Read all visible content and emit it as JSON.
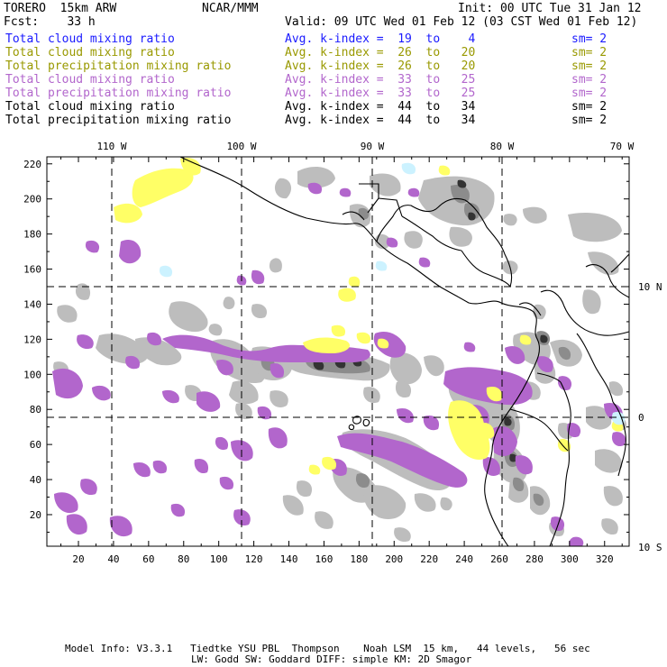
{
  "header": {
    "model": "TORERO  15km ARW",
    "org": "NCAR/MMM",
    "init": "Init: 00 UTC Tue 31 Jan 12",
    "fcst": "Fcst:    33 h",
    "valid": "Valid: 09 UTC Wed 01 Feb 12 (03 CST Wed 01 Feb 12)"
  },
  "legend": [
    {
      "field": "Total cloud mixing ratio",
      "range": "Avg. k-index =  19  to    4",
      "sm": "sm= 2",
      "color": "#1a1aff"
    },
    {
      "field": "Total cloud mixing ratio",
      "range": "Avg. k-index =  26  to   20",
      "sm": "sm= 2",
      "color": "#999900"
    },
    {
      "field": "Total precipitation mixing ratio",
      "range": "Avg. k-index =  26  to   20",
      "sm": "sm= 2",
      "color": "#999900"
    },
    {
      "field": "Total cloud mixing ratio",
      "range": "Avg. k-index =  33  to   25",
      "sm": "sm= 2",
      "color": "#b266cc"
    },
    {
      "field": "Total precipitation mixing ratio",
      "range": "Avg. k-index =  33  to   25",
      "sm": "sm= 2",
      "color": "#b266cc"
    },
    {
      "field": "Total cloud mixing ratio",
      "range": "Avg. k-index =  44  to   34",
      "sm": "sm= 2",
      "color": "#000000"
    },
    {
      "field": "Total precipitation mixing ratio",
      "range": "Avg. k-index =  44  to   34",
      "sm": "sm= 2",
      "color": "#000000"
    }
  ],
  "axes": {
    "top_lon": [
      "110 W",
      "100 W",
      "90 W",
      "80 W",
      "70 W"
    ],
    "right_lat": [
      "10 N",
      "0",
      "10 S"
    ],
    "left_y": [
      "220",
      "200",
      "180",
      "160",
      "140",
      "120",
      "100",
      "80",
      "60",
      "40",
      "20"
    ],
    "bottom_x": [
      "20",
      "40",
      "60",
      "80",
      "100",
      "120",
      "140",
      "160",
      "180",
      "200",
      "220",
      "240",
      "260",
      "280",
      "300",
      "320"
    ]
  },
  "footer": {
    "line1": "Model Info: V3.3.1   Tiedtke YSU PBL  Thompson    Noah LSM  15 km,   44 levels,   56 sec",
    "line2": "LW: Godd SW: Goddard DIFF: simple KM: 2D Smagor"
  },
  "colors": {
    "gray_light": "#bdbdbd",
    "gray_mid": "#8c8c8c",
    "gray_dark": "#333333",
    "purple": "#b266cc",
    "yellow": "#ffff66",
    "cyan": "#ccf2ff",
    "coast": "#000000"
  }
}
